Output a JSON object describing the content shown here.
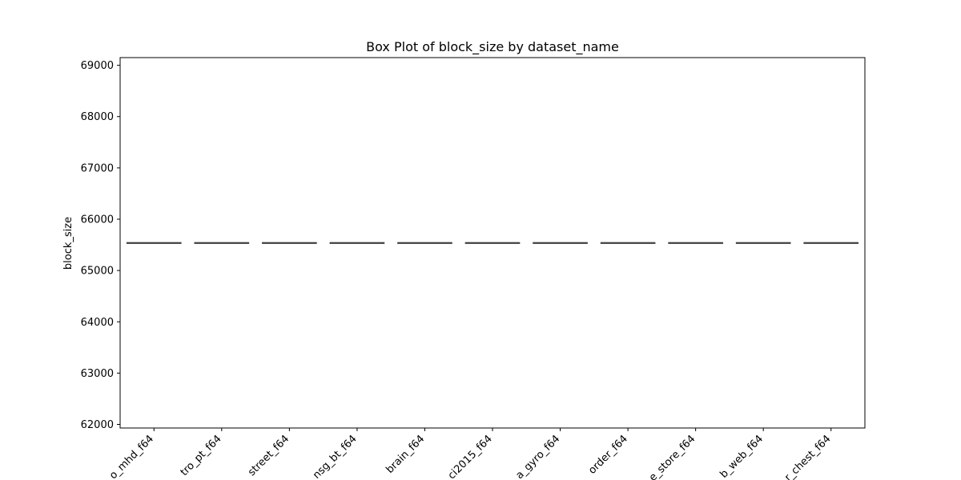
{
  "chart_data": {
    "type": "box",
    "title": "Box Plot of block_size by dataset_name",
    "xlabel": "",
    "ylabel": "block_size",
    "ylim": [
      61930,
      69150
    ],
    "yticks": [
      62000,
      63000,
      64000,
      65000,
      66000,
      67000,
      68000,
      69000
    ],
    "grid": false,
    "categories": [
      "o_mhd_f64",
      "tro_pt_f64",
      "street_f64",
      "nsg_bt_f64",
      "brain_f64",
      "ci2015_f64",
      "a_gyro_f64",
      "order_f64",
      "e_store_f64",
      "b_web_f64",
      "r_chest_f64"
    ],
    "values": [
      65536,
      65536,
      65536,
      65536,
      65536,
      65536,
      65536,
      65536,
      65536,
      65536,
      65536
    ],
    "box_color": "#4c72b0",
    "median_color": "#3d3d3d"
  }
}
